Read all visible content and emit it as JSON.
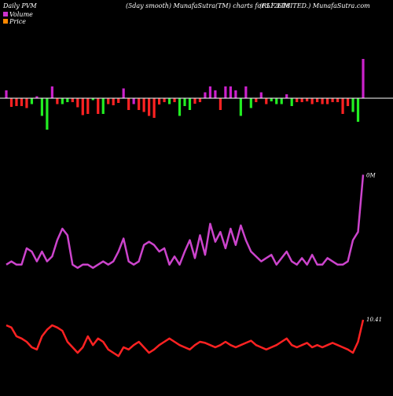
{
  "header": {
    "left": "Daily PVM",
    "center": "(5day smooth) MunafaSutra(TM) charts for 512618",
    "right": "(RLF LIMITED.) MunafaSutra.com"
  },
  "legend": [
    {
      "label": "Volume",
      "color": "#cc33cc"
    },
    {
      "label": "Price",
      "color": "#ff8800"
    }
  ],
  "colors": {
    "background": "#000000",
    "bar_up": "#cc22cc",
    "bar_down": "#ff2222",
    "bar_green": "#22ee22",
    "baseline": "#ffffff",
    "volume_line": "#cc44cc",
    "price_line": "#ff2222"
  },
  "chart_data": [
    {
      "type": "bar",
      "title": "Daily PVM",
      "description_label": "Volume",
      "values": [
        [
          2.0,
          "magenta"
        ],
        [
          -2.2,
          "red"
        ],
        [
          -2.0,
          "red"
        ],
        [
          -2.0,
          "red"
        ],
        [
          -2.5,
          "red"
        ],
        [
          -1.5,
          "green"
        ],
        [
          0.5,
          "magenta"
        ],
        [
          -4.5,
          "green"
        ],
        [
          -8.0,
          "green"
        ],
        [
          3.0,
          "magenta"
        ],
        [
          -1.5,
          "red"
        ],
        [
          -1.5,
          "green"
        ],
        [
          -1.0,
          "green"
        ],
        [
          -1.0,
          "red"
        ],
        [
          -2.3,
          "red"
        ],
        [
          -4.3,
          "red"
        ],
        [
          -4.0,
          "red"
        ],
        [
          -0.5,
          "green"
        ],
        [
          -4.0,
          "red"
        ],
        [
          -4.0,
          "green"
        ],
        [
          -1.5,
          "red"
        ],
        [
          -1.8,
          "red"
        ],
        [
          -1.2,
          "red"
        ],
        [
          2.5,
          "magenta"
        ],
        [
          -3.0,
          "red"
        ],
        [
          -1.5,
          "magenta"
        ],
        [
          -3.0,
          "red"
        ],
        [
          -3.5,
          "red"
        ],
        [
          -4.5,
          "red"
        ],
        [
          -5.0,
          "red"
        ],
        [
          -1.6,
          "red"
        ],
        [
          -1.0,
          "red"
        ],
        [
          -1.5,
          "green"
        ],
        [
          -1.0,
          "red"
        ],
        [
          -4.5,
          "green"
        ],
        [
          -2.0,
          "green"
        ],
        [
          -3.0,
          "green"
        ],
        [
          -1.4,
          "red"
        ],
        [
          -1.0,
          "red"
        ],
        [
          1.5,
          "magenta"
        ],
        [
          3.0,
          "magenta"
        ],
        [
          2.0,
          "magenta"
        ],
        [
          -3.0,
          "red"
        ],
        [
          3.0,
          "magenta"
        ],
        [
          3.0,
          "magenta"
        ],
        [
          2.0,
          "magenta"
        ],
        [
          -4.5,
          "green"
        ],
        [
          3.0,
          "magenta"
        ],
        [
          -2.5,
          "green"
        ],
        [
          -1.0,
          "red"
        ],
        [
          1.5,
          "magenta"
        ],
        [
          -1.5,
          "red"
        ],
        [
          -0.8,
          "green"
        ],
        [
          -1.5,
          "green"
        ],
        [
          -1.5,
          "green"
        ],
        [
          1.0,
          "magenta"
        ],
        [
          -2.0,
          "green"
        ],
        [
          -1.0,
          "red"
        ],
        [
          -1.0,
          "red"
        ],
        [
          -0.8,
          "red"
        ],
        [
          -1.5,
          "red"
        ],
        [
          -1.0,
          "red"
        ],
        [
          -1.5,
          "red"
        ],
        [
          -1.5,
          "red"
        ],
        [
          -1.0,
          "red"
        ],
        [
          -1.0,
          "red"
        ],
        [
          -4.0,
          "red"
        ],
        [
          -2.0,
          "red"
        ],
        [
          -3.5,
          "green"
        ],
        [
          -6.0,
          "green"
        ],
        [
          10.0,
          "magenta"
        ]
      ]
    },
    {
      "type": "line",
      "title": "Volume line",
      "series_name": "Volume",
      "end_label": "0M",
      "values": [
        40,
        42,
        40,
        40,
        50,
        48,
        42,
        48,
        42,
        45,
        55,
        62,
        58,
        40,
        38,
        40,
        40,
        38,
        40,
        42,
        40,
        42,
        48,
        56,
        42,
        40,
        42,
        52,
        54,
        52,
        48,
        50,
        40,
        45,
        40,
        48,
        55,
        44,
        58,
        46,
        65,
        54,
        60,
        50,
        62,
        52,
        64,
        55,
        48,
        45,
        42,
        44,
        46,
        40,
        44,
        48,
        42,
        40,
        44,
        40,
        46,
        40,
        40,
        44,
        42,
        40,
        40,
        42,
        55,
        60,
        95
      ]
    },
    {
      "type": "line",
      "title": "Price line",
      "series_name": "Price",
      "end_label": "10.41",
      "values": [
        40,
        38,
        30,
        28,
        25,
        20,
        18,
        30,
        36,
        40,
        38,
        35,
        25,
        20,
        15,
        20,
        30,
        22,
        28,
        25,
        18,
        15,
        12,
        20,
        18,
        22,
        25,
        20,
        15,
        18,
        22,
        25,
        28,
        25,
        22,
        20,
        18,
        22,
        25,
        24,
        22,
        20,
        22,
        25,
        22,
        20,
        22,
        24,
        26,
        22,
        20,
        18,
        20,
        22,
        25,
        28,
        22,
        20,
        22,
        24,
        20,
        22,
        20,
        22,
        24,
        22,
        20,
        18,
        15,
        25,
        45
      ]
    }
  ]
}
